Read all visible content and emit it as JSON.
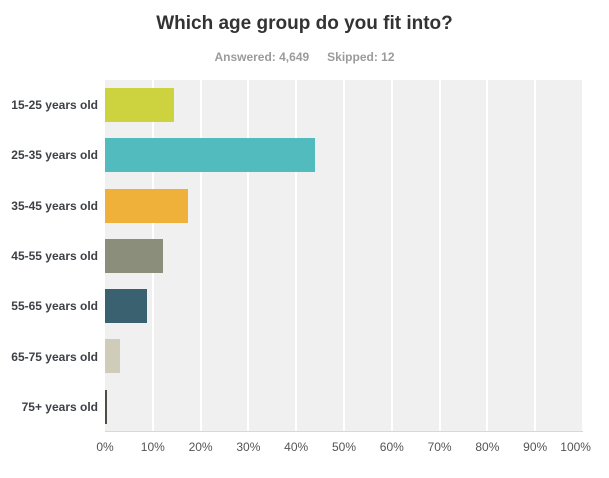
{
  "header": {
    "title": "Which age group do you fit into?",
    "answered_label": "Answered: 4,649",
    "skipped_label": "Skipped: 12"
  },
  "chart_data": {
    "type": "bar",
    "orientation": "horizontal",
    "title": "Which age group do you fit into?",
    "answered_count": "4,649",
    "skipped_count": "12",
    "categories": [
      "15-25 years old",
      "25-35 years old",
      "35-45 years old",
      "45-55 years old",
      "55-65 years old",
      "65-75 years old",
      "75+ years old"
    ],
    "values": [
      14.5,
      43.9,
      17.4,
      12.2,
      8.8,
      3.1,
      0.4
    ],
    "value_unit": "%",
    "bar_colors": [
      "#ccd33e",
      "#52bbbe",
      "#f0b13a",
      "#8b8e7b",
      "#3a6170",
      "#cfccba",
      "#4e4e44"
    ],
    "x_ticks": [
      "0%",
      "10%",
      "20%",
      "30%",
      "40%",
      "50%",
      "60%",
      "70%",
      "80%",
      "90%",
      "100%"
    ],
    "xlim": [
      0,
      100
    ],
    "grid": true,
    "legend": false,
    "plot_background": "#f0f0f0",
    "gridline_color": "#ffffff"
  }
}
